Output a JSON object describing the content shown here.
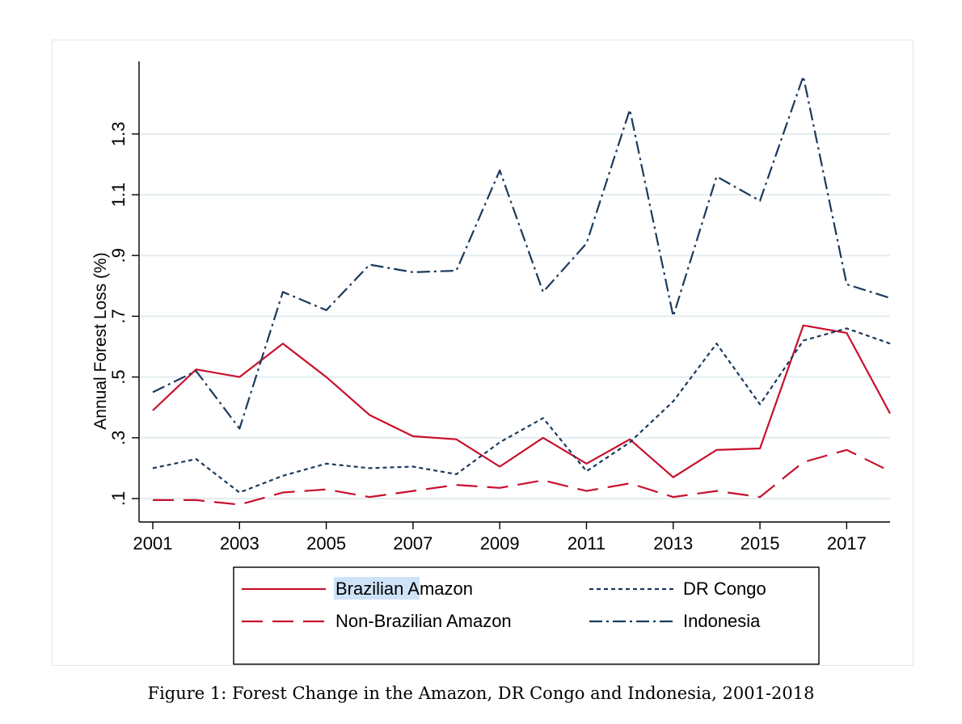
{
  "caption": "Figure 1: Forest Change in the Amazon, DR Congo and Indonesia, 2001-2018",
  "chart_data": {
    "type": "line",
    "title": "",
    "xlabel": "",
    "ylabel": "Annual Forest Loss (%)",
    "x": [
      2001,
      2002,
      2003,
      2004,
      2005,
      2006,
      2007,
      2008,
      2009,
      2010,
      2011,
      2012,
      2013,
      2014,
      2015,
      2016,
      2017,
      2018
    ],
    "xticks": [
      2001,
      2003,
      2005,
      2007,
      2009,
      2011,
      2013,
      2015,
      2017
    ],
    "xtick_labels": [
      "2001",
      "2003",
      "2005",
      "2007",
      "2009",
      "2011",
      "2013",
      "2015",
      "2017"
    ],
    "yticks": [
      0.1,
      0.3,
      0.5,
      0.7,
      0.9,
      1.1,
      1.3
    ],
    "ytick_labels": [
      ".1",
      ".3",
      ".5",
      ".7",
      ".9",
      "1.1",
      "1.3"
    ],
    "xlim": [
      2001,
      2018
    ],
    "ylim": [
      0.1,
      1.3
    ],
    "grid": true,
    "legend_position": "bottom",
    "series": [
      {
        "name": "Brazilian Amazon",
        "name_parts": [
          "Brazilian",
          " Amazon"
        ],
        "highlighted_word": "Brazilian",
        "color": "#c8102e",
        "dash": "solid",
        "values": [
          0.39,
          0.525,
          0.5,
          0.61,
          0.5,
          0.375,
          0.305,
          0.295,
          0.205,
          0.3,
          0.215,
          0.295,
          0.17,
          0.26,
          0.265,
          0.67,
          0.645,
          0.38
        ]
      },
      {
        "name": "Non-Brazilian Amazon",
        "color": "#c8102e",
        "dash": "longdash",
        "values": [
          0.095,
          0.095,
          0.08,
          0.12,
          0.13,
          0.105,
          0.125,
          0.145,
          0.135,
          0.16,
          0.125,
          0.15,
          0.105,
          0.125,
          0.105,
          0.22,
          0.26,
          0.19
        ]
      },
      {
        "name": "DR Congo",
        "color": "#1b3a5c",
        "dash": "shortdash",
        "values": [
          0.2,
          0.23,
          0.12,
          0.175,
          0.215,
          0.2,
          0.205,
          0.18,
          0.285,
          0.365,
          0.19,
          0.285,
          0.42,
          0.61,
          0.41,
          0.62,
          0.66,
          0.61
        ]
      },
      {
        "name": "Indonesia",
        "color": "#1b3a5c",
        "dash": "dashdot",
        "values": [
          0.45,
          0.52,
          0.33,
          0.78,
          0.72,
          0.87,
          0.845,
          0.85,
          1.18,
          0.78,
          0.94,
          1.38,
          0.7,
          1.16,
          1.08,
          1.49,
          0.805,
          0.76
        ]
      }
    ]
  }
}
